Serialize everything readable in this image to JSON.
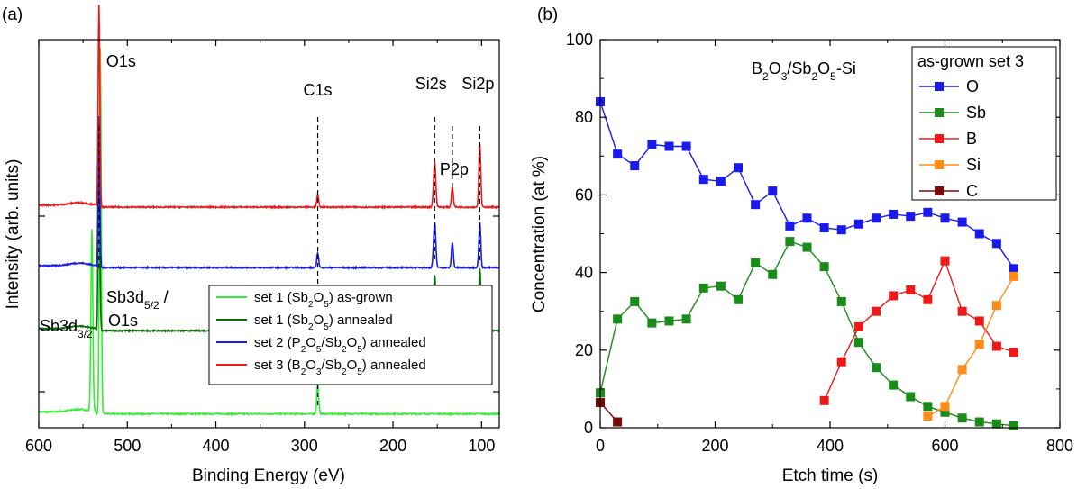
{
  "chart_data": [
    {
      "type": "line",
      "panel_label": "(a)",
      "xlabel": "Binding Energy (eV)",
      "ylabel": "Intensity (arb. units)",
      "xlim": [
        600,
        80
      ],
      "x_reversed": true,
      "x_ticks": [
        600,
        500,
        400,
        300,
        200,
        100
      ],
      "grid": false,
      "legend_position": "bottom-right",
      "peak_labels": [
        {
          "text": "O1s",
          "x": 532
        },
        {
          "text": "C1s",
          "x": 285
        },
        {
          "text": "Si2s",
          "x": 153
        },
        {
          "text": "Si2p",
          "x": 102
        },
        {
          "text": "P2p",
          "x": 133
        },
        {
          "text": "Sb3d",
          "sub": "3/2",
          "text2": "",
          "x": 540
        },
        {
          "text": "Sb3d",
          "sub": "5/2",
          "text2": " /",
          "line2": "O1s",
          "x": 530
        }
      ],
      "dashed_markers": [
        532,
        285,
        153,
        133,
        102
      ],
      "series": [
        {
          "name": "set 1 (Sb2O5) as-grown",
          "legend_parts": [
            "set 1 (Sb",
            "2",
            "O",
            "5",
            ") as-grown"
          ],
          "color": "#33ee33",
          "baseline": 0.3,
          "peaks": [
            {
              "x": 540,
              "h": 7.2,
              "w": 1.5
            },
            {
              "x": 530.5,
              "h": 14.5,
              "w": 1.4
            },
            {
              "x": 285,
              "h": 1.2,
              "w": 1.5
            }
          ]
        },
        {
          "name": "set 1 (Sb2O5) annealed",
          "legend_parts": [
            "set 1 (Sb",
            "2",
            "O",
            "5",
            ") annealed"
          ],
          "color": "#0a6b0a",
          "baseline": 3.6,
          "peaks": [
            {
              "x": 532,
              "h": 7.5,
              "w": 1.3
            },
            {
              "x": 285,
              "h": 0.5,
              "w": 1.5
            },
            {
              "x": 153,
              "h": 2.2,
              "w": 1.8
            },
            {
              "x": 102,
              "h": 2.5,
              "w": 1.5
            }
          ]
        },
        {
          "name": "set 2 (P2O5/Sb2O5) annealed",
          "legend_parts": [
            "set 2 (P",
            "2",
            "O",
            "5",
            "/Sb",
            "2",
            "O",
            "5",
            ") annealed"
          ],
          "color": "#1a1aee",
          "baseline": 6.1,
          "peaks": [
            {
              "x": 532,
              "h": 6.0,
              "w": 1.3
            },
            {
              "x": 285,
              "h": 0.6,
              "w": 1.5
            },
            {
              "x": 153,
              "h": 1.8,
              "w": 1.8
            },
            {
              "x": 133,
              "h": 1.0,
              "w": 1.5
            },
            {
              "x": 102,
              "h": 1.8,
              "w": 1.5
            }
          ]
        },
        {
          "name": "set 3 (B2O3/Sb2O5) annealed",
          "legend_parts": [
            "set 3 (B",
            "2",
            "O",
            "3",
            "/Sb",
            "2",
            "O",
            "5",
            ") annealed"
          ],
          "color": "#ee1a1a",
          "baseline": 8.5,
          "peaks": [
            {
              "x": 532,
              "h": 8.0,
              "w": 1.3
            },
            {
              "x": 285,
              "h": 0.5,
              "w": 1.5
            },
            {
              "x": 153,
              "h": 1.8,
              "w": 1.8
            },
            {
              "x": 133,
              "h": 0.8,
              "w": 1.5
            },
            {
              "x": 102,
              "h": 2.5,
              "w": 1.5
            }
          ]
        }
      ]
    },
    {
      "type": "line",
      "panel_label": "(b)",
      "xlabel": "Etch time (s)",
      "ylabel": "Concentration (at %)",
      "xlim": [
        0,
        800
      ],
      "ylim": [
        0,
        100
      ],
      "x_ticks": [
        0,
        200,
        400,
        600,
        800
      ],
      "y_ticks": [
        0,
        20,
        40,
        60,
        80,
        100
      ],
      "grid": false,
      "annotation": {
        "parts": [
          "B",
          "2",
          "O",
          "3",
          "/Sb",
          "2",
          "O",
          "5",
          "-Si"
        ]
      },
      "legend_title": "as-grown set 3",
      "legend_position": "top-right",
      "series": [
        {
          "name": "O",
          "color": "#1a1aee",
          "x": [
            0,
            30,
            60,
            90,
            120,
            150,
            180,
            210,
            240,
            270,
            300,
            330,
            360,
            390,
            420,
            450,
            480,
            510,
            540,
            570,
            600,
            630,
            660,
            690,
            720
          ],
          "y": [
            84,
            70.5,
            67.5,
            73,
            72.5,
            72.5,
            64,
            63.5,
            67,
            57.5,
            61,
            52,
            54,
            51.5,
            51,
            52.5,
            54,
            55,
            54.5,
            55.5,
            54,
            53,
            50,
            47.5,
            41
          ]
        },
        {
          "name": "Sb",
          "color": "#1a8c1a",
          "x": [
            0,
            30,
            60,
            90,
            120,
            150,
            180,
            210,
            240,
            270,
            300,
            330,
            360,
            390,
            420,
            450,
            480,
            510,
            540,
            570,
            600,
            630,
            660,
            690,
            720
          ],
          "y": [
            9,
            28,
            32.5,
            27,
            27.5,
            28,
            36,
            36.5,
            33,
            42.5,
            39.5,
            48,
            46.5,
            41.5,
            32.5,
            22,
            15.5,
            11,
            8,
            5.5,
            4,
            2.5,
            1.5,
            1,
            0.5
          ]
        },
        {
          "name": "B",
          "color": "#ee1a1a",
          "x": [
            390,
            420,
            450,
            480,
            510,
            540,
            570,
            600,
            630,
            660,
            690,
            720
          ],
          "y": [
            7,
            17,
            26,
            30,
            34,
            35.5,
            33,
            43,
            30,
            27.5,
            21,
            19.5
          ]
        },
        {
          "name": "Si",
          "color": "#ff8c1a",
          "x": [
            570,
            600,
            630,
            660,
            690,
            720
          ],
          "y": [
            3,
            5.5,
            15,
            21.5,
            31.5,
            39
          ]
        },
        {
          "name": "C",
          "color": "#7a0a0a",
          "x": [
            0,
            30
          ],
          "y": [
            6.5,
            1.5
          ]
        }
      ]
    }
  ]
}
